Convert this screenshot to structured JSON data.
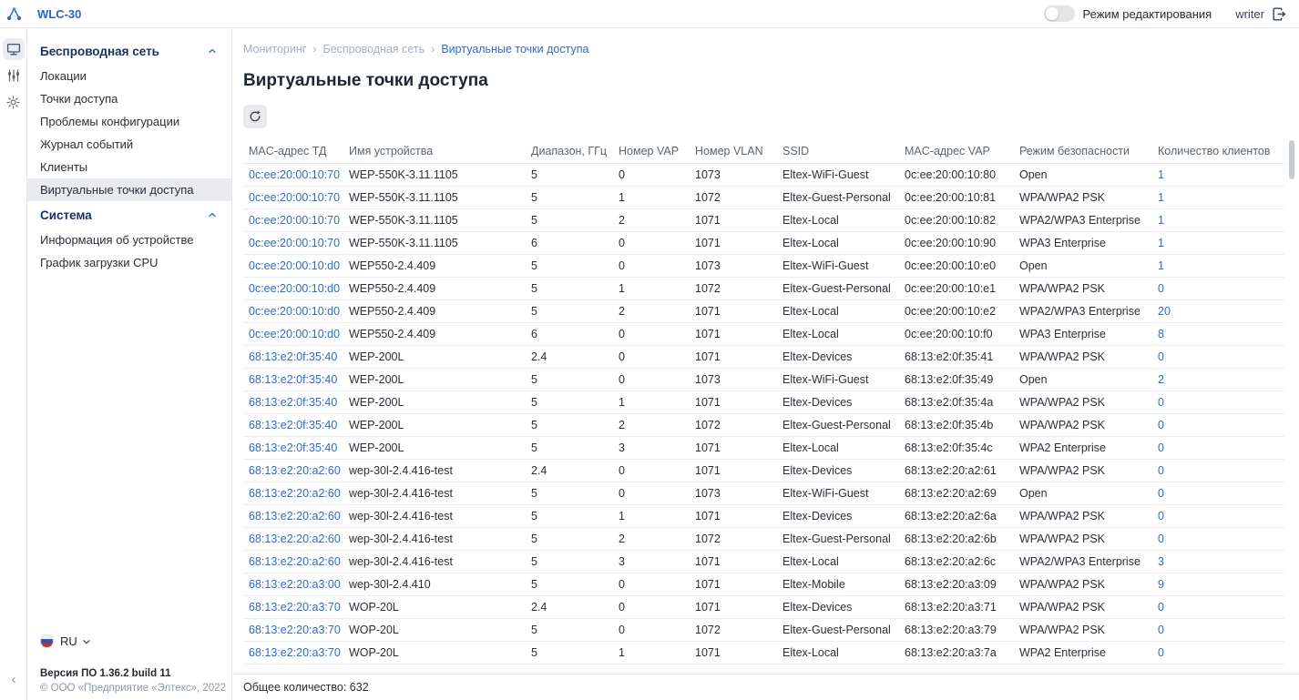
{
  "topbar": {
    "title": "WLC-30",
    "edit_mode_label": "Режим редактирования",
    "edit_mode_on": false,
    "username": "writer"
  },
  "sidebar": {
    "sections": [
      {
        "label": "Беспроводная сеть",
        "expanded": true,
        "items": [
          {
            "label": "Локации",
            "active": false
          },
          {
            "label": "Точки доступа",
            "active": false
          },
          {
            "label": "Проблемы конфигурации",
            "active": false
          },
          {
            "label": "Журнал событий",
            "active": false
          },
          {
            "label": "Клиенты",
            "active": false
          },
          {
            "label": "Виртуальные точки доступа",
            "active": true
          }
        ]
      },
      {
        "label": "Система",
        "expanded": true,
        "items": [
          {
            "label": "Информация об устройстве",
            "active": false
          },
          {
            "label": "График загрузки CPU",
            "active": false
          }
        ]
      }
    ],
    "language": "RU",
    "version": "Версия ПО 1.36.2 build 11",
    "copyright": "© ООО «Предприятие «Элтекс», 2022"
  },
  "breadcrumb": {
    "items": [
      {
        "label": "Мониторинг",
        "current": false
      },
      {
        "label": "Беспроводная сеть",
        "current": false
      },
      {
        "label": "Виртуальные точки доступа",
        "current": true
      }
    ]
  },
  "page": {
    "title": "Виртуальные точки доступа"
  },
  "table": {
    "columns": [
      "MAC-адрес ТД",
      "Имя устройства",
      "Диапазон, ГГц",
      "Номер VAP",
      "Номер VLAN",
      "SSID",
      "MAC-адрес VAP",
      "Режим безопасности",
      "Количество клиентов"
    ],
    "rows": [
      [
        "0c:ee:20:00:10:70",
        "WEP-550K-3.11.1105",
        "5",
        "0",
        "1073",
        "Eltex-WiFi-Guest",
        "0c:ee:20:00:10:80",
        "Open",
        "1"
      ],
      [
        "0c:ee:20:00:10:70",
        "WEP-550K-3.11.1105",
        "5",
        "1",
        "1072",
        "Eltex-Guest-Personal",
        "0c:ee:20:00:10:81",
        "WPA/WPA2 PSK",
        "1"
      ],
      [
        "0c:ee:20:00:10:70",
        "WEP-550K-3.11.1105",
        "5",
        "2",
        "1071",
        "Eltex-Local",
        "0c:ee:20:00:10:82",
        "WPA2/WPA3 Enterprise",
        "1"
      ],
      [
        "0c:ee:20:00:10:70",
        "WEP-550K-3.11.1105",
        "6",
        "0",
        "1071",
        "Eltex-Local",
        "0c:ee:20:00:10:90",
        "WPA3 Enterprise",
        "1"
      ],
      [
        "0c:ee:20:00:10:d0",
        "WEP550-2.4.409",
        "5",
        "0",
        "1073",
        "Eltex-WiFi-Guest",
        "0c:ee:20:00:10:e0",
        "Open",
        "1"
      ],
      [
        "0c:ee:20:00:10:d0",
        "WEP550-2.4.409",
        "5",
        "1",
        "1072",
        "Eltex-Guest-Personal",
        "0c:ee:20:00:10:e1",
        "WPA/WPA2 PSK",
        "0"
      ],
      [
        "0c:ee:20:00:10:d0",
        "WEP550-2.4.409",
        "5",
        "2",
        "1071",
        "Eltex-Local",
        "0c:ee:20:00:10:e2",
        "WPA2/WPA3 Enterprise",
        "20"
      ],
      [
        "0c:ee:20:00:10:d0",
        "WEP550-2.4.409",
        "6",
        "0",
        "1071",
        "Eltex-Local",
        "0c:ee:20:00:10:f0",
        "WPA3 Enterprise",
        "8"
      ],
      [
        "68:13:e2:0f:35:40",
        "WEP-200L",
        "2.4",
        "0",
        "1071",
        "Eltex-Devices",
        "68:13:e2:0f:35:41",
        "WPA/WPA2 PSK",
        "0"
      ],
      [
        "68:13:e2:0f:35:40",
        "WEP-200L",
        "5",
        "0",
        "1073",
        "Eltex-WiFi-Guest",
        "68:13:e2:0f:35:49",
        "Open",
        "2"
      ],
      [
        "68:13:e2:0f:35:40",
        "WEP-200L",
        "5",
        "1",
        "1071",
        "Eltex-Devices",
        "68:13:e2:0f:35:4a",
        "WPA/WPA2 PSK",
        "0"
      ],
      [
        "68:13:e2:0f:35:40",
        "WEP-200L",
        "5",
        "2",
        "1072",
        "Eltex-Guest-Personal",
        "68:13:e2:0f:35:4b",
        "WPA/WPA2 PSK",
        "0"
      ],
      [
        "68:13:e2:0f:35:40",
        "WEP-200L",
        "5",
        "3",
        "1071",
        "Eltex-Local",
        "68:13:e2:0f:35:4c",
        "WPA2 Enterprise",
        "0"
      ],
      [
        "68:13:e2:20:a2:60",
        "wep-30l-2.4.416-test",
        "2.4",
        "0",
        "1071",
        "Eltex-Devices",
        "68:13:e2:20:a2:61",
        "WPA/WPA2 PSK",
        "0"
      ],
      [
        "68:13:e2:20:a2:60",
        "wep-30l-2.4.416-test",
        "5",
        "0",
        "1073",
        "Eltex-WiFi-Guest",
        "68:13:e2:20:a2:69",
        "Open",
        "0"
      ],
      [
        "68:13:e2:20:a2:60",
        "wep-30l-2.4.416-test",
        "5",
        "1",
        "1071",
        "Eltex-Devices",
        "68:13:e2:20:a2:6a",
        "WPA/WPA2 PSK",
        "0"
      ],
      [
        "68:13:e2:20:a2:60",
        "wep-30l-2.4.416-test",
        "5",
        "2",
        "1072",
        "Eltex-Guest-Personal",
        "68:13:e2:20:a2:6b",
        "WPA/WPA2 PSK",
        "0"
      ],
      [
        "68:13:e2:20:a2:60",
        "wep-30l-2.4.416-test",
        "5",
        "3",
        "1071",
        "Eltex-Local",
        "68:13:e2:20:a2:6c",
        "WPA2/WPA3 Enterprise",
        "3"
      ],
      [
        "68:13:e2:20:a3:00",
        "wep-30l-2.4.410",
        "5",
        "0",
        "1071",
        "Eltex-Mobile",
        "68:13:e2:20:a3:09",
        "WPA/WPA2 PSK",
        "9"
      ],
      [
        "68:13:e2:20:a3:70",
        "WOP-20L",
        "2.4",
        "0",
        "1071",
        "Eltex-Devices",
        "68:13:e2:20:a3:71",
        "WPA/WPA2 PSK",
        "0"
      ],
      [
        "68:13:e2:20:a3:70",
        "WOP-20L",
        "5",
        "0",
        "1072",
        "Eltex-Guest-Personal",
        "68:13:e2:20:a3:79",
        "WPA/WPA2 PSK",
        "0"
      ],
      [
        "68:13:e2:20:a3:70",
        "WOP-20L",
        "5",
        "1",
        "1071",
        "Eltex-Local",
        "68:13:e2:20:a3:7a",
        "WPA2 Enterprise",
        "0"
      ]
    ],
    "total": "Общее количество: 632"
  },
  "colors": {
    "accent": "#2e6bcc",
    "brand_logo": "#2f66c9",
    "section_header": "#17325e",
    "muted_breadcrumb": "#a6b0c2"
  }
}
